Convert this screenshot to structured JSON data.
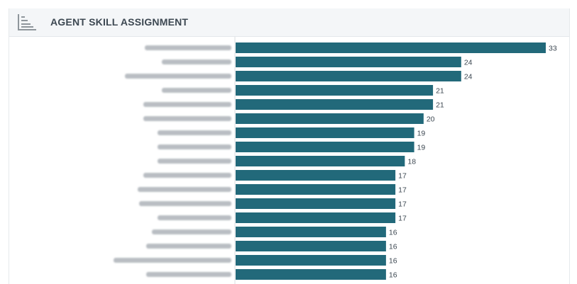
{
  "header": {
    "title": "AGENT SKILL ASSIGNMENT",
    "icon": "bar-chart-icon"
  },
  "colors": {
    "bar": "#22697a",
    "axis": "#d8dde2",
    "label_blur": "#8a9096"
  },
  "chart_data": {
    "type": "bar",
    "orientation": "horizontal",
    "title": "AGENT SKILL ASSIGNMENT",
    "categories": [
      "",
      "",
      "",
      "",
      "",
      "",
      "",
      "",
      "",
      "",
      "",
      "",
      "",
      "",
      "",
      "",
      ""
    ],
    "values": [
      33,
      24,
      24,
      21,
      21,
      20,
      19,
      19,
      18,
      17,
      17,
      17,
      17,
      16,
      16,
      16,
      16
    ],
    "xlim": [
      0,
      33
    ],
    "grid": false,
    "legend": "none",
    "category_labels_obscured": true
  }
}
